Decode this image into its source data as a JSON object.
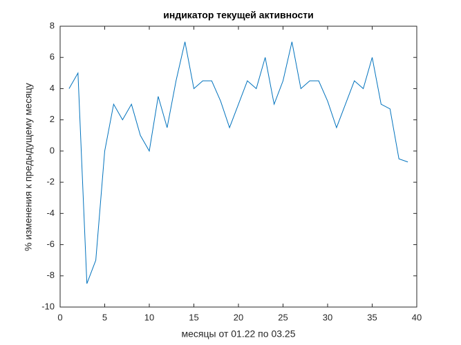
{
  "chart_data": {
    "type": "line",
    "title": "индикатор текущей активности",
    "x_label": "месяцы от 01.22 по 03.25",
    "y_label": "% изменения к предыдущему месяцу",
    "x": [
      1,
      2,
      3,
      4,
      5,
      6,
      7,
      8,
      9,
      10,
      11,
      12,
      13,
      14,
      15,
      16,
      17,
      18,
      19,
      20,
      21,
      22,
      23,
      24,
      25,
      26,
      27,
      28,
      29,
      30,
      31,
      32,
      33,
      34,
      35,
      36,
      37,
      38,
      39
    ],
    "series": [
      {
        "color": "#0072bd",
        "values": [
          4,
          5,
          -8.5,
          -7,
          0,
          3,
          2,
          3,
          1,
          0,
          3.5,
          1.5,
          4.5,
          7,
          4,
          4.5,
          4.5,
          3.2,
          1.5,
          3,
          4.5,
          4,
          6,
          3,
          4.5,
          7,
          4,
          4.5,
          4.5,
          3.2,
          1.5,
          3,
          4.5,
          4,
          6,
          3,
          2.7,
          -0.5,
          -0.7
        ]
      }
    ],
    "xlim": [
      0,
      40
    ],
    "xticks": [
      0,
      5,
      10,
      15,
      20,
      25,
      30,
      35,
      40
    ],
    "ylim": [
      -10,
      8
    ],
    "yticks": [
      -10,
      -8,
      -6,
      -4,
      -2,
      0,
      2,
      4,
      6,
      8
    ],
    "grid": false
  }
}
